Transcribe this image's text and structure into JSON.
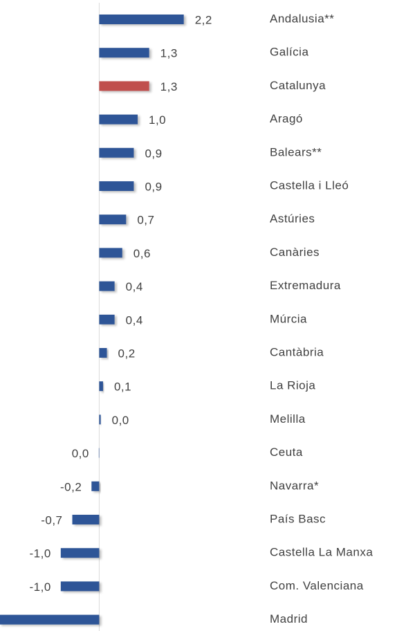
{
  "chart_data": {
    "type": "bar",
    "orientation": "horizontal",
    "categories": [
      "Andalusia**",
      "Galícia",
      "Catalunya",
      "Aragó",
      "Balears**",
      "Castella i Lleó",
      "Astúries",
      "Canàries",
      "Extremadura",
      "Múrcia",
      "Cantàbria",
      "La Rioja",
      "Melilla",
      "Ceuta",
      "Navarra*",
      "País Basc",
      "Castella La Manxa",
      "Com. Valenciana",
      "Madrid"
    ],
    "values": [
      2.2,
      1.3,
      1.3,
      1.0,
      0.9,
      0.9,
      0.7,
      0.6,
      0.4,
      0.4,
      0.2,
      0.1,
      0.04,
      -0.01,
      -0.2,
      -0.7,
      -1.0,
      -1.0,
      -2.6
    ],
    "value_labels": [
      "2,2",
      "1,3",
      "1,3",
      "1,0",
      "0,9",
      "0,9",
      "0,7",
      "0,6",
      "0,4",
      "0,4",
      "0,2",
      "0,1",
      "0,0",
      "0,0",
      "-0,2",
      "-0,7",
      "-1,0",
      "-1,0",
      null
    ],
    "colors": [
      "#2f5597",
      "#2f5597",
      "#c0504d",
      "#2f5597",
      "#2f5597",
      "#2f5597",
      "#2f5597",
      "#2f5597",
      "#2f5597",
      "#2f5597",
      "#2f5597",
      "#2f5597",
      "#2f5597",
      "#2f5597",
      "#2f5597",
      "#2f5597",
      "#2f5597",
      "#2f5597",
      "#2f5597"
    ],
    "xlim": [
      -2.58,
      4.4
    ]
  }
}
